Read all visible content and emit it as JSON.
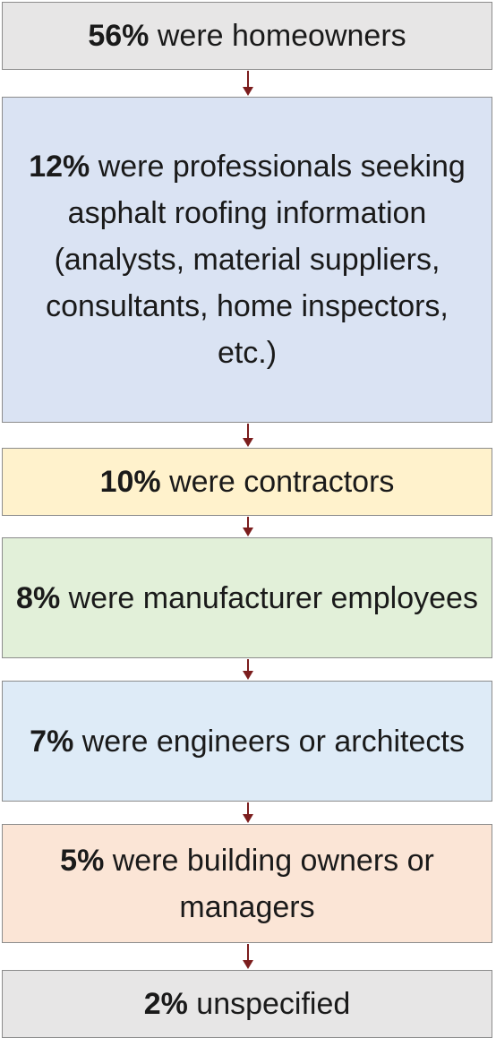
{
  "nodes": [
    {
      "percent": "56%",
      "label": "were homeowners"
    },
    {
      "percent": "12%",
      "label": "were professionals seeking asphalt roofing information (analysts, material suppliers, consultants, home inspectors, etc.)"
    },
    {
      "percent": "10%",
      "label": "were contractors"
    },
    {
      "percent": "8%",
      "label": "were manufacturer employees"
    },
    {
      "percent": "7%",
      "label": "were engineers or architects"
    },
    {
      "percent": "5%",
      "label": "were building owners or managers"
    },
    {
      "percent": "2%",
      "label": "unspecified"
    }
  ]
}
